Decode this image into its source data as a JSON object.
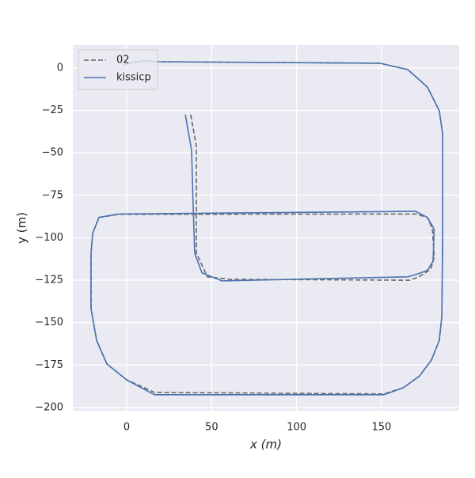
{
  "chart_data": {
    "type": "line",
    "xlabel": "x (m)",
    "ylabel": "y (m)",
    "xlim": [
      -31.7,
      195.7
    ],
    "ylim": [
      -201.9,
      13.5
    ],
    "xticks": [
      0,
      50,
      100,
      150
    ],
    "yticks": [
      0,
      {
        "value": -25,
        "label": "−25"
      },
      {
        "value": -50,
        "label": "−50"
      },
      {
        "value": -75,
        "label": "−75"
      },
      {
        "value": -100,
        "label": "−100"
      },
      {
        "value": -125,
        "label": "−125"
      },
      {
        "value": -150,
        "label": "−150"
      },
      {
        "value": -175,
        "label": "−175"
      },
      {
        "value": -200,
        "label": "−200"
      }
    ],
    "grid": true,
    "legend": "upper left",
    "series": [
      {
        "name": "02",
        "color": "#666666",
        "linestyle": "dashed",
        "x": [
          37.7,
          41,
          41,
          47.5,
          60.6,
          166.8,
          172,
          179,
          181,
          180,
          177,
          170,
          -4.7,
          -16.3,
          -20,
          -21,
          -21,
          -17.7,
          -11.6,
          0,
          16.3,
          151.4,
          163,
          172.4,
          179.4,
          184,
          185.5,
          186,
          186,
          184,
          177,
          165.4,
          149,
          18.6,
          9.3,
          2.3,
          -2
        ],
        "y": [
          -27.5,
          -46,
          -109,
          -123,
          -124.5,
          -125,
          -123,
          -118.5,
          -111.5,
          -95,
          -88,
          -86,
          -86.2,
          -88,
          -97.4,
          -109,
          -141.7,
          -160.4,
          -174.4,
          -183.7,
          -191.1,
          -192,
          -188.3,
          -181.4,
          -172,
          -160.4,
          -146.4,
          -99.8,
          -39.2,
          -25.2,
          -11.2,
          -0.9,
          2.8,
          3.7,
          4.2,
          2.8,
          2
        ]
      },
      {
        "name": "kissicp",
        "color": "#4c72b0",
        "linestyle": "solid",
        "x": [
          34.5,
          38.2,
          39,
          40,
          44.3,
          56,
          165.4,
          170,
          177,
          180.3,
          181,
          177,
          170,
          -4.7,
          -16.3,
          -20,
          -21,
          -21,
          -17.7,
          -11.6,
          0,
          16.3,
          151.4,
          163,
          172.4,
          179.4,
          184,
          185.5,
          186,
          186,
          184,
          177,
          165.4,
          149,
          18.6,
          9.3,
          2.3,
          -2
        ],
        "y": [
          -27.5,
          -48.5,
          -76.5,
          -109,
          -120.7,
          -125.4,
          -123,
          -121.7,
          -119.3,
          -113.8,
          -95,
          -88,
          -84.4,
          -86,
          -88,
          -97.4,
          -109,
          -141.7,
          -160.4,
          -174.4,
          -183.7,
          -192.5,
          -192.5,
          -188.3,
          -181.4,
          -172,
          -160.4,
          -146.4,
          -99.8,
          -39.2,
          -25.2,
          -11.2,
          -0.9,
          2.8,
          3.7,
          4.2,
          2.8,
          2
        ]
      }
    ]
  }
}
